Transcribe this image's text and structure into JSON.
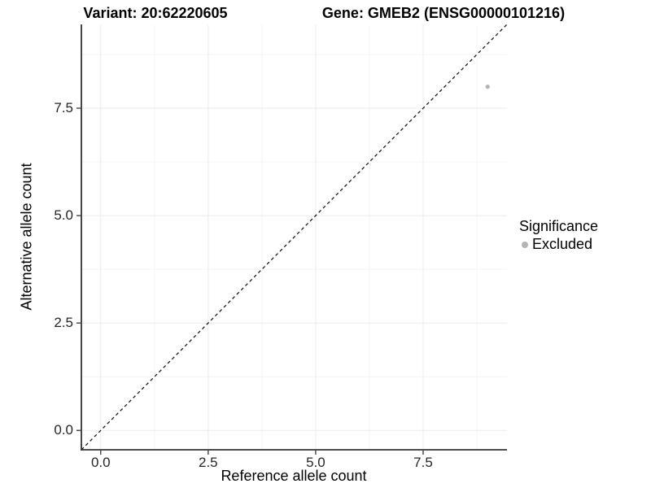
{
  "titles": {
    "left": "Variant: 20:62220605",
    "right": "Gene: GMEB2 (ENSG00000101216)"
  },
  "chart_data": {
    "type": "scatter",
    "xlabel": "Reference allele count",
    "ylabel": "Alternative allele count",
    "xlim": [
      -0.45,
      9.45
    ],
    "ylim": [
      -0.45,
      9.45
    ],
    "x_major_ticks": [
      0.0,
      2.5,
      5.0,
      7.5
    ],
    "x_tick_labels": [
      "0.0",
      "2.5",
      "5.0",
      "7.5"
    ],
    "x_minor_ticks": [
      1.25,
      3.75,
      6.25,
      8.75
    ],
    "y_major_ticks": [
      0.0,
      2.5,
      5.0,
      7.5
    ],
    "y_tick_labels": [
      "0.0",
      "2.5",
      "5.0",
      "7.5"
    ],
    "y_minor_ticks": [
      1.25,
      3.75,
      6.25,
      8.75
    ],
    "grid": true,
    "points": [
      {
        "x": 9,
        "y": 8,
        "series": "Excluded"
      }
    ],
    "identity_line": {
      "slope": 1,
      "intercept": 0,
      "style": "dashed",
      "color": "#111111"
    },
    "series_colors": {
      "Excluded": "#b5b5b5"
    },
    "legend": {
      "title": "Significance",
      "position": "right",
      "items": [
        {
          "label": "Excluded",
          "color": "#b5b5b5"
        }
      ]
    }
  },
  "colors": {
    "background": "#ffffff",
    "grid_major": "#ebebeb",
    "grid_minor": "#f4f4f4",
    "axis_line": "#333333",
    "tick_mark": "#333333",
    "tick_label": "#262626",
    "title_text": "#000000",
    "point": "#b5b5b5",
    "identity_line": "#111111"
  }
}
